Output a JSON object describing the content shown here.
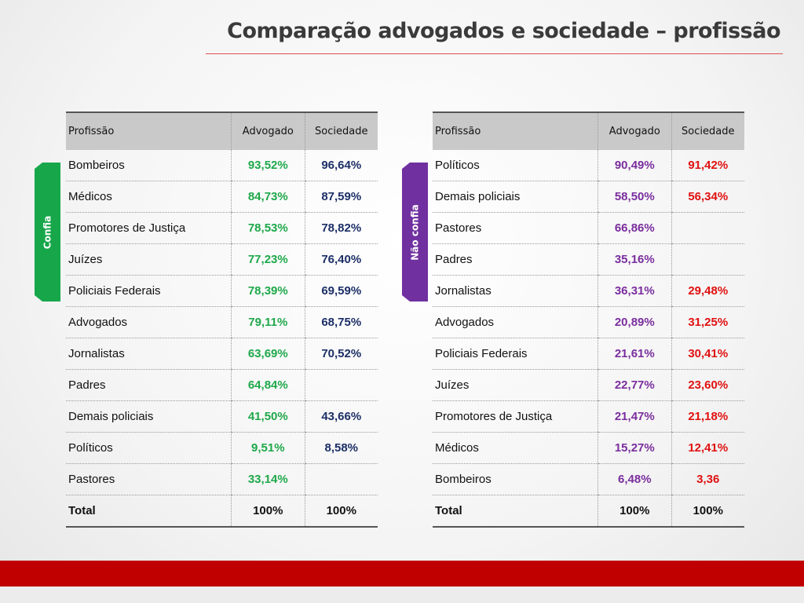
{
  "title": "Comparação advogados e sociedade – profissão",
  "left": {
    "tab_label": "Confia",
    "headers": [
      "Profissão",
      "Advogado",
      "Sociedade"
    ],
    "rows": [
      [
        "Bombeiros",
        "93,52%",
        "96,64%"
      ],
      [
        "Médicos",
        "84,73%",
        "87,59%"
      ],
      [
        "Promotores de Justiça",
        "78,53%",
        "78,82%"
      ],
      [
        "Juízes",
        "77,23%",
        "76,40%"
      ],
      [
        "Policiais Federais",
        "78,39%",
        "69,59%"
      ],
      [
        "Advogados",
        "79,11%",
        "68,75%"
      ],
      [
        "Jornalistas",
        "63,69%",
        "70,52%"
      ],
      [
        "Padres",
        "64,84%",
        ""
      ],
      [
        "Demais policiais",
        "41,50%",
        "43,66%"
      ],
      [
        "Políticos",
        "9,51%",
        "8,58%"
      ],
      [
        "Pastores",
        "33,14%",
        ""
      ]
    ],
    "total": [
      "Total",
      "100%",
      "100%"
    ]
  },
  "right": {
    "tab_label": "Não confia",
    "headers": [
      "Profissão",
      "Advogado",
      "Sociedade"
    ],
    "rows": [
      [
        "Políticos",
        "90,49%",
        "91,42%"
      ],
      [
        "Demais policiais",
        "58,50%",
        "56,34%"
      ],
      [
        "Pastores",
        "66,86%",
        ""
      ],
      [
        "Padres",
        "35,16%",
        ""
      ],
      [
        "Jornalistas",
        "36,31%",
        "29,48%"
      ],
      [
        "Advogados",
        "20,89%",
        "31,25%"
      ],
      [
        "Policiais Federais",
        "21,61%",
        "30,41%"
      ],
      [
        "Juízes",
        "22,77%",
        "23,60%"
      ],
      [
        "Promotores de Justiça",
        "21,47%",
        "21,18%"
      ],
      [
        "Médicos",
        "15,27%",
        "12,41%"
      ],
      [
        "Bombeiros",
        "6,48%",
        "3,36"
      ]
    ],
    "total": [
      "Total",
      "100%",
      "100%"
    ]
  },
  "colors": {
    "left_advogado": "#1fa84a",
    "left_sociedade": "#1c2f66",
    "right_advogado": "#7a2e9e",
    "right_sociedade": "#e01010",
    "confia_tab": "#17a74a",
    "nao_confia_tab": "#7030a0",
    "bottom_bar": "#c00000"
  }
}
